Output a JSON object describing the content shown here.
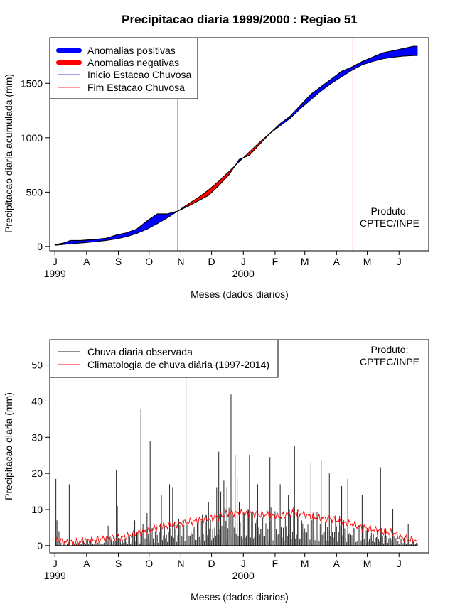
{
  "title": "Precipitacao diaria 1999/2000 : Regiao 51",
  "colors": {
    "positive": "#0000ff",
    "negative": "#ff0000",
    "start_line": "#4444cc",
    "end_line": "#ff3030",
    "observed": "#222222",
    "climatology": "#ff0000"
  },
  "month_ticks": [
    "J",
    "A",
    "S",
    "O",
    "N",
    "D",
    "J",
    "F",
    "M",
    "A",
    "M",
    "J"
  ],
  "year_labels": [
    {
      "label": "1999",
      "day": 0
    },
    {
      "label": "2000",
      "day": 184
    }
  ],
  "chart_data": [
    {
      "type": "area",
      "title": "Precipitacao diaria 1999/2000 : Regiao 51",
      "xlabel": "Meses (dados diarios)",
      "ylabel": "Precipitacao diaria acumulada (mm)",
      "xlim": [
        -5,
        365
      ],
      "ylim": [
        -40,
        1920
      ],
      "yticks": [
        0,
        500,
        1000,
        1500
      ],
      "month_days": [
        0,
        31,
        62,
        92,
        123,
        153,
        184,
        215,
        244,
        275,
        305,
        336
      ],
      "legend": [
        "Anomalias positivas",
        "Anomalias negativas",
        "Inicio Estacao Chuvosa",
        "Fim Estacao Chuvosa"
      ],
      "credit": [
        "Produto:",
        "CPTEC/INPE"
      ],
      "onset_day": 120,
      "end_day": 291,
      "observed_cumulative": {
        "days": [
          0,
          10,
          15,
          25,
          40,
          50,
          60,
          70,
          80,
          90,
          100,
          110,
          120,
          130,
          140,
          150,
          160,
          170,
          180,
          190,
          200,
          210,
          220,
          230,
          240,
          250,
          260,
          270,
          280,
          290,
          300,
          310,
          320,
          330,
          340,
          350,
          354
        ],
        "values": [
          15,
          35,
          55,
          55,
          65,
          75,
          105,
          125,
          160,
          235,
          300,
          300,
          325,
          370,
          420,
          470,
          560,
          660,
          800,
          840,
          940,
          1040,
          1130,
          1200,
          1300,
          1400,
          1470,
          1540,
          1610,
          1650,
          1700,
          1740,
          1780,
          1800,
          1820,
          1840,
          1840
        ]
      },
      "climatology_cumulative": {
        "days": [
          0,
          10,
          20,
          30,
          40,
          50,
          60,
          70,
          80,
          90,
          100,
          110,
          120,
          130,
          140,
          150,
          160,
          170,
          180,
          190,
          200,
          210,
          220,
          230,
          240,
          250,
          260,
          270,
          280,
          290,
          300,
          310,
          320,
          330,
          340,
          350,
          354
        ],
        "values": [
          10,
          20,
          28,
          35,
          45,
          55,
          70,
          90,
          120,
          160,
          210,
          265,
          325,
          390,
          450,
          520,
          600,
          690,
          780,
          870,
          960,
          1040,
          1110,
          1180,
          1270,
          1350,
          1430,
          1500,
          1560,
          1620,
          1670,
          1700,
          1725,
          1740,
          1750,
          1755,
          1755
        ]
      }
    },
    {
      "type": "line",
      "xlabel": "Meses (dados diarios)",
      "ylabel": "Precipitacao diaria (mm)",
      "xlim": [
        -5,
        365
      ],
      "ylim": [
        -2,
        57
      ],
      "yticks": [
        0,
        10,
        20,
        30,
        40,
        50
      ],
      "month_days": [
        0,
        31,
        62,
        92,
        123,
        153,
        184,
        215,
        244,
        275,
        305,
        336
      ],
      "legend": [
        "Chuva diaria observada",
        "Climatologia de chuva diária (1997-2014)"
      ],
      "credit": [
        "Produto:",
        "CPTEC/INPE"
      ],
      "observed_peaks": {
        "days": [
          1,
          2,
          4,
          14,
          52,
          60,
          61,
          78,
          80,
          84,
          86,
          90,
          93,
          104,
          112,
          115,
          128,
          150,
          158,
          160,
          162,
          165,
          168,
          172,
          176,
          178,
          180,
          190,
          198,
          210,
          220,
          228,
          234,
          250,
          260,
          268,
          280,
          286,
          298,
          300,
          318,
          330,
          345
        ],
        "values": [
          18.5,
          7,
          4,
          17,
          5.5,
          21,
          11,
          7,
          3.5,
          37.8,
          6,
          9,
          29,
          14,
          17,
          16,
          48,
          12,
          16,
          26,
          15,
          18,
          16,
          41.8,
          25.2,
          19,
          12,
          25,
          17,
          24.5,
          17,
          14,
          27.5,
          23,
          23.5,
          20,
          16.5,
          18.5,
          18,
          14,
          21.7,
          10,
          6
        ]
      },
      "climatology_daily": {
        "days": [
          0,
          10,
          20,
          30,
          40,
          50,
          60,
          70,
          80,
          90,
          100,
          110,
          120,
          130,
          140,
          150,
          160,
          170,
          180,
          190,
          200,
          210,
          220,
          230,
          240,
          250,
          260,
          270,
          280,
          290,
          300,
          310,
          320,
          330,
          340,
          350,
          354
        ],
        "values": [
          1.5,
          1,
          0.8,
          1.5,
          1.5,
          2,
          2,
          2.5,
          3.5,
          4,
          5,
          5.5,
          6,
          6.5,
          7,
          7.5,
          8,
          9,
          9,
          9,
          8.5,
          8.5,
          8,
          9,
          9,
          8,
          7.5,
          7.5,
          6.5,
          6,
          5,
          4.5,
          4,
          3.5,
          2,
          1.5,
          1
        ]
      }
    }
  ]
}
